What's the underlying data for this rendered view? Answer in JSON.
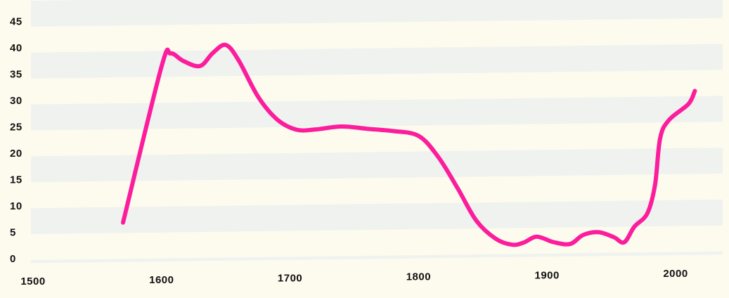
{
  "chart_data": {
    "type": "line",
    "title": "",
    "xlabel": "",
    "ylabel": "",
    "xlim": [
      1500,
      2030
    ],
    "ylim": [
      0,
      45
    ],
    "x_ticks": [
      "1500",
      "1600",
      "1700",
      "1800",
      "1900",
      "2000"
    ],
    "y_ticks": [
      "0",
      "5",
      "10",
      "15",
      "20",
      "25",
      "30",
      "35",
      "40",
      "45"
    ],
    "grid": "alternating horizontal bands",
    "legend": "none",
    "series": [
      {
        "x": [
          1570,
          1600,
          1607,
          1617,
          1630,
          1640,
          1650,
          1660,
          1675,
          1690,
          1705,
          1720,
          1740,
          1760,
          1780,
          1800,
          1815,
          1830,
          1845,
          1860,
          1873,
          1882,
          1892,
          1905,
          1918,
          1928,
          1940,
          1952,
          1960,
          1968,
          1978,
          1984,
          1988,
          1995,
          2010,
          2015
        ],
        "y": [
          7,
          37,
          39.5,
          38,
          37,
          39.5,
          41,
          38,
          31,
          26.5,
          24.5,
          24.5,
          25,
          24.5,
          24,
          23,
          19,
          13,
          6.5,
          3,
          1.8,
          2.2,
          3.3,
          2.2,
          1.8,
          3.5,
          4,
          3,
          2,
          5,
          7.5,
          13,
          22,
          25.5,
          28.5,
          31
        ]
      }
    ]
  },
  "colors": {
    "background": "#fdfbee",
    "band": "#eff2ef",
    "line": "#fb1d9c",
    "text": "#111111"
  }
}
